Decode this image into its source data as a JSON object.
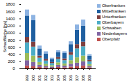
{
  "chart_data": {
    "type": "bar",
    "stacked": true,
    "ylabel": "Schadfläche [ha]",
    "categories": [
      "1999",
      "2000",
      "2001",
      "2002",
      "2003",
      "2004",
      "2005",
      "2006",
      "2007",
      "2008",
      "2009"
    ],
    "series": [
      {
        "name": "Oberfranken",
        "color": "#8db3e2",
        "values": [
          170,
          150,
          80,
          60,
          40,
          50,
          50,
          80,
          150,
          170,
          40
        ]
      },
      {
        "name": "Mittelfranken",
        "color": "#1f5fa0",
        "values": [
          600,
          600,
          200,
          150,
          80,
          140,
          150,
          220,
          400,
          450,
          120
        ]
      },
      {
        "name": "Unterfranken",
        "color": "#7f3f3f",
        "values": [
          150,
          140,
          60,
          50,
          30,
          50,
          50,
          80,
          120,
          130,
          40
        ]
      },
      {
        "name": "Oberbayern",
        "color": "#4bacc6",
        "values": [
          300,
          250,
          120,
          90,
          60,
          100,
          90,
          150,
          250,
          260,
          80
        ]
      },
      {
        "name": "Schwaben",
        "color": "#9bbb59",
        "values": [
          200,
          180,
          80,
          60,
          40,
          70,
          60,
          100,
          150,
          160,
          50
        ]
      },
      {
        "name": "Niederbayern",
        "color": "#8064a2",
        "values": [
          150,
          120,
          60,
          40,
          30,
          60,
          50,
          80,
          100,
          120,
          40
        ]
      },
      {
        "name": "Oberpfalz",
        "color": "#c0504d",
        "values": [
          80,
          60,
          40,
          30,
          20,
          40,
          30,
          50,
          60,
          80,
          30
        ]
      }
    ],
    "ylim": [
      0,
      1800
    ],
    "yticks": [
      0,
      200,
      400,
      600,
      800,
      1000,
      1200,
      1400,
      1600,
      1800
    ],
    "grid": false,
    "legend": "right"
  }
}
